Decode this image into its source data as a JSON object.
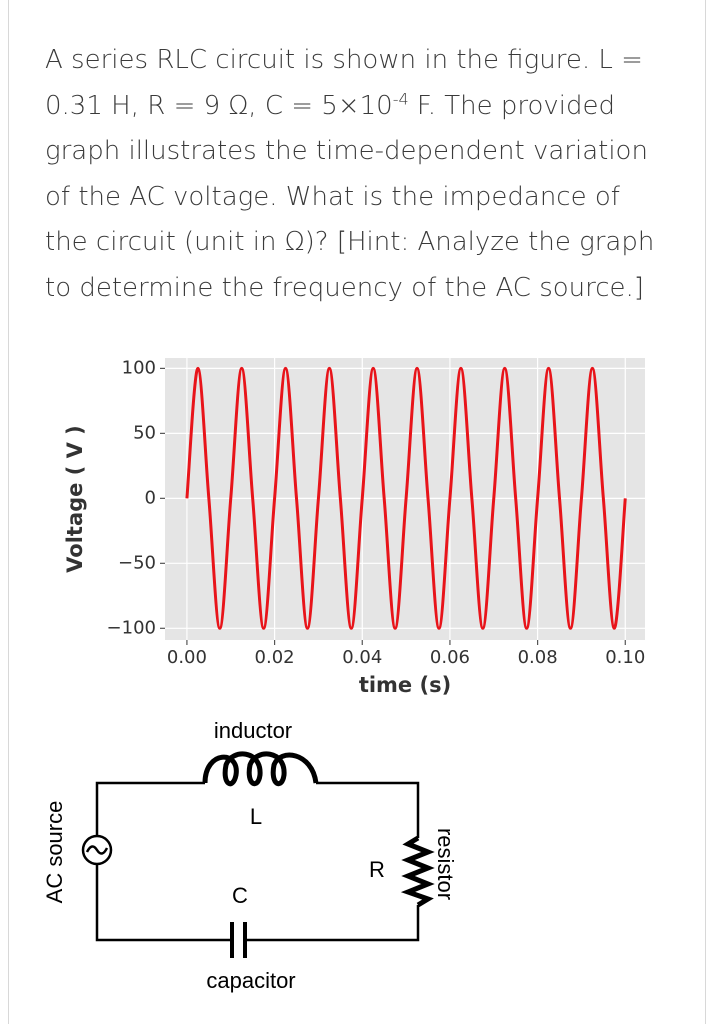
{
  "question": {
    "before": "A series RLC circuit is shown in the figure. L = 0.31 H, R = 9 Ω, C = 5×10",
    "superscript": "-4",
    "after": " F. The provided graph illustrates the time-dependent variation of the AC voltage. What is the impedance of the circuit (unit in Ω)? [Hint: Analyze the graph to determine the frequency of the AC source.]"
  },
  "chart_data": {
    "type": "line",
    "x_label": "time (s)",
    "y_label": "Voltage ( V )",
    "x": [
      0,
      0.0025,
      0.005,
      0.0075,
      0.01,
      0.0125,
      0.015,
      0.0175,
      0.02,
      0.0225,
      0.025,
      0.0275,
      0.03,
      0.0325,
      0.035,
      0.0375,
      0.04,
      0.0425,
      0.045,
      0.0475,
      0.05,
      0.0525,
      0.055,
      0.0575,
      0.06,
      0.0625,
      0.065,
      0.0675,
      0.07,
      0.0725,
      0.075,
      0.0775,
      0.08,
      0.0825,
      0.085,
      0.0875,
      0.09,
      0.0925,
      0.095,
      0.0975,
      0.1
    ],
    "series": [
      {
        "color": "#e8141a",
        "values": [
          0,
          100,
          0,
          -100,
          0,
          100,
          0,
          -100,
          0,
          100,
          0,
          -100,
          0,
          100,
          0,
          -100,
          0,
          100,
          0,
          -100,
          0,
          100,
          0,
          -100,
          0,
          100,
          0,
          -100,
          0,
          100,
          0,
          -100,
          0,
          100,
          0,
          -100,
          0,
          100,
          0,
          -100,
          0
        ]
      }
    ],
    "xlim": [
      -0.005,
      0.1045
    ],
    "ylim": [
      -109,
      108
    ],
    "xticks": [
      {
        "value": 0,
        "label": "0.00"
      },
      0.02,
      0.04,
      0.06,
      0.08,
      {
        "value": 0.1,
        "label": "0.10"
      }
    ],
    "yticks": [
      100,
      50,
      0,
      {
        "value": -50,
        "label": "−50"
      },
      {
        "value": -100,
        "label": "−100"
      }
    ],
    "grid": true,
    "background": "#e5e5e5"
  },
  "circuit": {
    "inductor": "inductor",
    "inductor_symbol": "L",
    "capacitor_symbol": "C",
    "capacitor": "capacitor",
    "resistor_symbol": "R",
    "resistor": "resistor",
    "source": "AC source"
  }
}
